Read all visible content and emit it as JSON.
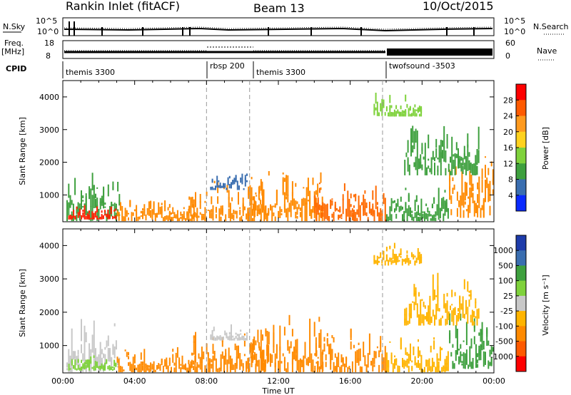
{
  "header": {
    "title": "Rankin Inlet (fitACF)",
    "beam": "Beam 13",
    "date": "10/Oct/2015"
  },
  "strip_panels": {
    "nsky_label": "N.Sky",
    "nsearch_label": "N.Search",
    "freq_label_1": "Freq.",
    "freq_label_2": "[MHz]",
    "nave_label": "Nave",
    "cpid_label": "CPID",
    "nsky_ticks": [
      "10^5",
      "10^0"
    ],
    "nsearch_ticks": [
      "10^5",
      "10^0"
    ],
    "freq_ticks": [
      "18",
      "8"
    ],
    "nave_ticks": [
      "60",
      "0"
    ],
    "cpid_segments": [
      {
        "label": "themis 3300",
        "start_hour": 0.0
      },
      {
        "label": "rbsp 200",
        "start_hour": 8.0
      },
      {
        "label": "themis 3300",
        "start_hour": 10.4
      },
      {
        "label": "twofsound -3503",
        "start_hour": 17.8
      }
    ]
  },
  "chart_data": [
    {
      "type": "heatmap",
      "name": "power",
      "xlabel": "Time UT",
      "ylabel": "Slant Range [km]",
      "xlim": [
        0,
        24
      ],
      "ylim": [
        180,
        4500
      ],
      "x_ticks": [
        "00:00",
        "04:00",
        "08:00",
        "12:00",
        "16:00",
        "20:00",
        "00:00"
      ],
      "y_ticks": [
        1000,
        2000,
        3000,
        4000
      ],
      "colorbar": {
        "label": "Power [dB]",
        "ticks": [
          "28",
          "24",
          "20",
          "16",
          "12",
          "8",
          "4"
        ],
        "colors": [
          "#ff0000",
          "#ff5a00",
          "#ff9a1e",
          "#ffd21e",
          "#7fd23c",
          "#3ea03e",
          "#3a6eb0",
          "#0a2aff"
        ]
      },
      "echo_regions": [
        {
          "t0": 0.2,
          "t1": 3.2,
          "r0": 200,
          "r1": 1950,
          "color": "#3ea03e"
        },
        {
          "t0": 0.3,
          "t1": 3.0,
          "r0": 250,
          "r1": 800,
          "color": "#ff2000"
        },
        {
          "t0": 3.0,
          "t1": 7.5,
          "r0": 200,
          "r1": 1000,
          "color": "#ff8a00"
        },
        {
          "t0": 7.0,
          "t1": 11.5,
          "r0": 200,
          "r1": 1600,
          "color": "#ff8a00"
        },
        {
          "t0": 8.2,
          "t1": 10.3,
          "r0": 1150,
          "r1": 1700,
          "color": "#3a6eb0"
        },
        {
          "t0": 10.3,
          "t1": 14.5,
          "r0": 200,
          "r1": 2100,
          "color": "#ff8a00"
        },
        {
          "t0": 14.0,
          "t1": 18.0,
          "r0": 200,
          "r1": 1600,
          "color": "#ff6a00"
        },
        {
          "t0": 18.0,
          "t1": 21.5,
          "r0": 200,
          "r1": 1300,
          "color": "#3ea03e"
        },
        {
          "t0": 21.5,
          "t1": 24.0,
          "r0": 300,
          "r1": 2300,
          "color": "#ff8a00"
        },
        {
          "t0": 19.0,
          "t1": 23.2,
          "r0": 1600,
          "r1": 3300,
          "color": "#3ea03e"
        },
        {
          "t0": 17.3,
          "t1": 20.0,
          "r0": 3400,
          "r1": 4200,
          "color": "#7fd23c"
        }
      ]
    },
    {
      "type": "heatmap",
      "name": "velocity",
      "xlabel": "Time UT",
      "ylabel": "Slant Range [km]",
      "xlim": [
        0,
        24
      ],
      "ylim": [
        180,
        4500
      ],
      "x_ticks": [
        "00:00",
        "04:00",
        "08:00",
        "12:00",
        "16:00",
        "20:00",
        "00:00"
      ],
      "y_ticks": [
        1000,
        2000,
        3000,
        4000
      ],
      "colorbar": {
        "label": "Velocity [m s⁻¹]",
        "ticks": [
          "1000",
          "500",
          "100",
          "25",
          "-25",
          "-100",
          "-500",
          "-1000"
        ],
        "colors": [
          "#1e3caa",
          "#3a6eb0",
          "#3ea03e",
          "#7fd23c",
          "#c8c8c8",
          "#ffb400",
          "#ff8a00",
          "#ff5a00",
          "#ff0000"
        ]
      },
      "echo_regions": [
        {
          "t0": 0.2,
          "t1": 3.2,
          "r0": 200,
          "r1": 1950,
          "color": "#c8c8c8"
        },
        {
          "t0": 0.3,
          "t1": 3.0,
          "r0": 250,
          "r1": 800,
          "color": "#7fd23c"
        },
        {
          "t0": 3.0,
          "t1": 7.5,
          "r0": 200,
          "r1": 1000,
          "color": "#ff8a00"
        },
        {
          "t0": 7.0,
          "t1": 11.5,
          "r0": 200,
          "r1": 1600,
          "color": "#ff8a00"
        },
        {
          "t0": 8.2,
          "t1": 10.3,
          "r0": 1150,
          "r1": 1700,
          "color": "#c8c8c8"
        },
        {
          "t0": 10.3,
          "t1": 14.5,
          "r0": 200,
          "r1": 2100,
          "color": "#ff8a00"
        },
        {
          "t0": 14.0,
          "t1": 18.0,
          "r0": 200,
          "r1": 1600,
          "color": "#ff8a00"
        },
        {
          "t0": 18.0,
          "t1": 21.5,
          "r0": 200,
          "r1": 1300,
          "color": "#ffb400"
        },
        {
          "t0": 21.5,
          "t1": 24.0,
          "r0": 300,
          "r1": 2300,
          "color": "#3ea03e"
        },
        {
          "t0": 19.0,
          "t1": 23.2,
          "r0": 1600,
          "r1": 3300,
          "color": "#ffb400"
        },
        {
          "t0": 17.3,
          "t1": 20.0,
          "r0": 3400,
          "r1": 4200,
          "color": "#ffb400"
        }
      ]
    }
  ]
}
